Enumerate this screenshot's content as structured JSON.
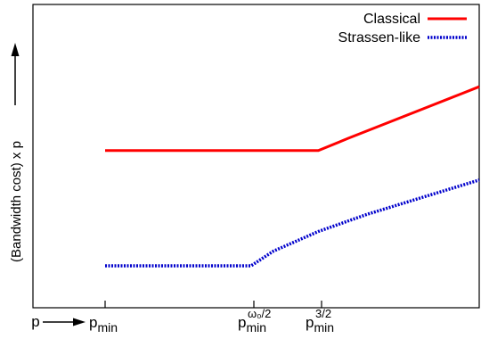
{
  "chart_data": {
    "type": "line",
    "title": "",
    "xlabel": "p",
    "ylabel": "(Bandwidth cost) x p",
    "grid": false,
    "legend_position": "top-right",
    "x_ticks": [
      {
        "base": "p",
        "sub": "min",
        "sup": ""
      },
      {
        "base": "p",
        "sub": "min",
        "sup": "ω₀/2"
      },
      {
        "base": "p",
        "sub": "min",
        "sup": "3/2"
      }
    ],
    "series": [
      {
        "name": "Classical",
        "color": "#ff0000",
        "style": "solid",
        "points": [
          [
            0,
            0.55
          ],
          [
            0.57,
            0.55
          ],
          [
            0.65,
            0.6
          ],
          [
            0.75,
            0.66
          ],
          [
            0.85,
            0.72
          ],
          [
            0.95,
            0.78
          ],
          [
            1.0,
            0.81
          ]
        ]
      },
      {
        "name": "Strassen-like",
        "color": "#0000cc",
        "style": "dotted",
        "points": [
          [
            0,
            0.08
          ],
          [
            0.39,
            0.08
          ],
          [
            0.45,
            0.14
          ],
          [
            0.57,
            0.22
          ],
          [
            0.7,
            0.29
          ],
          [
            0.85,
            0.36
          ],
          [
            1.0,
            0.43
          ]
        ]
      }
    ]
  }
}
